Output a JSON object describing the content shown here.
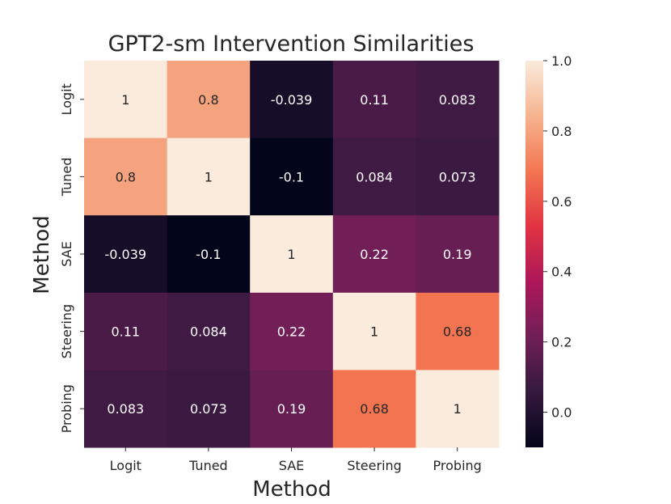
{
  "chart_data": {
    "type": "heatmap",
    "title": "GPT2-sm Intervention Similarities",
    "xlabel": "Method",
    "ylabel": "Method",
    "x_categories": [
      "Logit",
      "Tuned",
      "SAE",
      "Steering",
      "Probing"
    ],
    "y_categories": [
      "Logit",
      "Tuned",
      "SAE",
      "Steering",
      "Probing"
    ],
    "values": [
      [
        1,
        0.8,
        -0.039,
        0.11,
        0.083
      ],
      [
        0.8,
        1,
        -0.1,
        0.084,
        0.073
      ],
      [
        -0.039,
        -0.1,
        1,
        0.22,
        0.19
      ],
      [
        0.11,
        0.084,
        0.22,
        1,
        0.68
      ],
      [
        0.083,
        0.073,
        0.19,
        0.68,
        1
      ]
    ],
    "cell_labels": [
      [
        "1",
        "0.8",
        "-0.039",
        "0.11",
        "0.083"
      ],
      [
        "0.8",
        "1",
        "-0.1",
        "0.084",
        "0.073"
      ],
      [
        "-0.039",
        "-0.1",
        "1",
        "0.22",
        "0.19"
      ],
      [
        "0.11",
        "0.084",
        "0.22",
        "1",
        "0.68"
      ],
      [
        "0.083",
        "0.073",
        "0.19",
        "0.68",
        "1"
      ]
    ],
    "colorbar": {
      "range": [
        -0.1,
        1.0
      ],
      "ticks": [
        0.0,
        0.2,
        0.4,
        0.6,
        0.8,
        1.0
      ],
      "tick_labels": [
        "0.0",
        "0.2",
        "0.4",
        "0.6",
        "0.8",
        "1.0"
      ],
      "colormap": "rocket",
      "stops": [
        "#03051a",
        "#35193e",
        "#701f57",
        "#ad1759",
        "#e13342",
        "#f37651",
        "#f6b48f",
        "#faebdd"
      ]
    },
    "grid": false,
    "legend": "colorbar-right"
  }
}
